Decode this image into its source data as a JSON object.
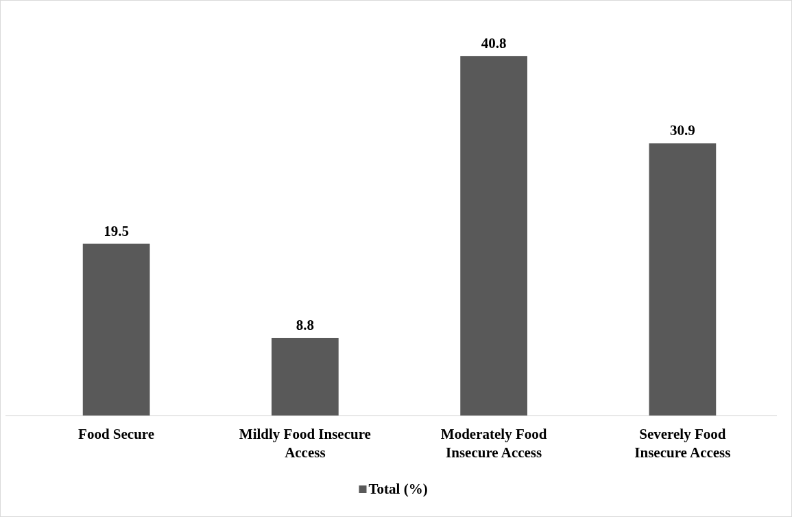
{
  "chart_data": {
    "type": "bar",
    "categories": [
      "Food Secure",
      "Mildly Food Insecure Access",
      "Moderately Food Insecure Access",
      "Severely Food Insecure Access"
    ],
    "series": [
      {
        "name": "Total (%)",
        "color": "#595959",
        "values": [
          19.5,
          8.8,
          40.8,
          30.9
        ]
      }
    ],
    "data_labels": true,
    "legend": "bottom"
  }
}
